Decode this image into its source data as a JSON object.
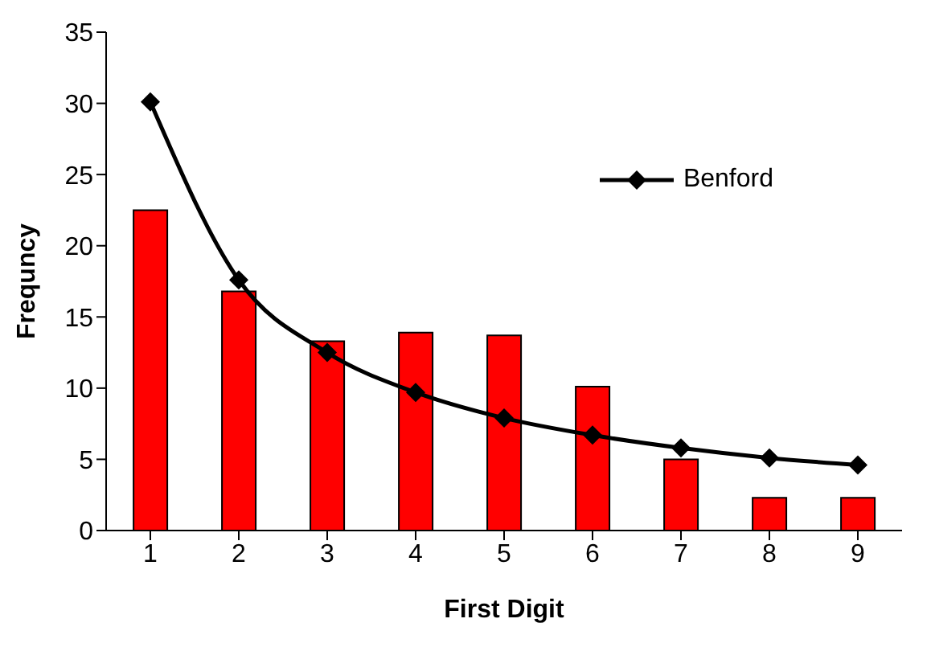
{
  "chart_data": {
    "type": "bar",
    "xlabel": "First Digit",
    "ylabel": "Frequncy",
    "categories": [
      "1",
      "2",
      "3",
      "4",
      "5",
      "6",
      "7",
      "8",
      "9"
    ],
    "series": [
      {
        "color": "#ff0000",
        "values": [
          22.5,
          16.8,
          13.3,
          13.9,
          13.7,
          10.1,
          5.0,
          2.3,
          2.3
        ]
      },
      {
        "type": "line",
        "name": "Benford",
        "color": "#000000",
        "values": [
          30.1,
          17.6,
          12.5,
          9.7,
          7.9,
          6.7,
          5.8,
          5.1,
          4.6
        ],
        "marker": "diamond"
      }
    ],
    "ylim": [
      0,
      35
    ],
    "yticks": [
      0,
      5,
      10,
      15,
      20,
      25,
      30,
      35
    ],
    "grid": false,
    "legend": "top right"
  }
}
